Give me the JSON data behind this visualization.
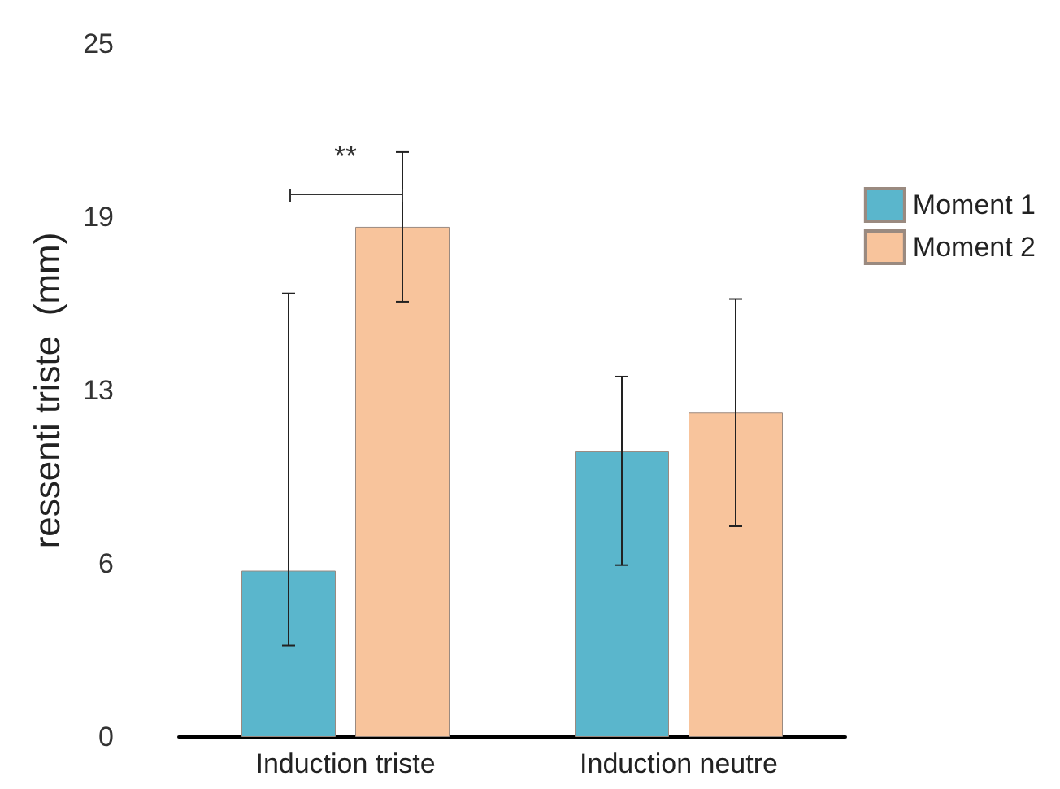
{
  "chart_data": {
    "type": "bar",
    "ylabel": "ressenti triste  (mm)",
    "categories": [
      "Induction triste",
      "Induction neutre"
    ],
    "series": [
      {
        "name": "Moment 1",
        "color": "#5ab6cc",
        "values": [
          6.0,
          10.3
        ],
        "errors": [
          [
            3.3,
            16.0
          ],
          [
            6.2,
            13.0
          ]
        ]
      },
      {
        "name": "Moment 2",
        "color": "#f8c49c",
        "values": [
          18.4,
          11.7
        ],
        "errors": [
          [
            15.7,
            21.1
          ],
          [
            7.6,
            15.8
          ]
        ]
      }
    ],
    "ylim": [
      0,
      25
    ],
    "yticks": [
      0,
      {
        "value": 6.25,
        "label": "6"
      },
      {
        "value": 12.5,
        "label": "13"
      },
      {
        "value": 18.75,
        "label": "19"
      },
      25
    ],
    "annotations": [
      "**"
    ],
    "grid": false,
    "legend": "top right"
  }
}
